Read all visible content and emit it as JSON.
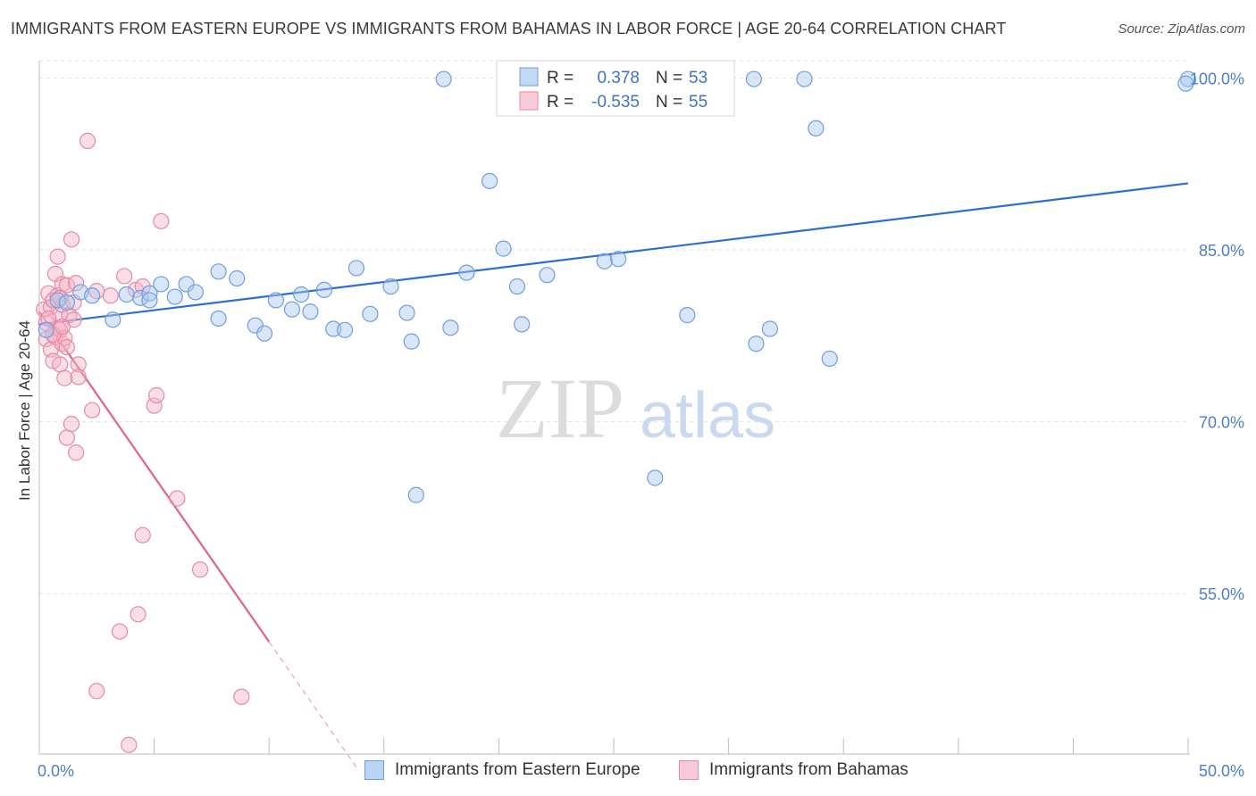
{
  "chart_data": {
    "type": "scatter",
    "title": "IMMIGRANTS FROM EASTERN EUROPE VS IMMIGRANTS FROM BAHAMAS IN LABOR FORCE | AGE 20-64 CORRELATION CHART",
    "source": "Source: ZipAtlas.com",
    "ylabel": "In Labor Force | Age 20-64",
    "xlabel": "",
    "xlim": [
      0,
      50
    ],
    "ylim": [
      41.0,
      101.5
    ],
    "x_tick_labels": [
      "0.0%",
      "50.0%"
    ],
    "y_ticks": [
      55.0,
      70.0,
      85.0,
      100.0
    ],
    "y_tick_labels": [
      "55.0%",
      "70.0%",
      "85.0%",
      "100.0%"
    ],
    "grid": true,
    "legend_position": "top-center",
    "watermark": "ZIPatlas",
    "legend": [
      {
        "r_label": "R =",
        "r_value": "0.378",
        "n_label": "N =",
        "n_value": "53"
      },
      {
        "r_label": "R =",
        "r_value": "-0.535",
        "n_label": "N =",
        "n_value": "55"
      }
    ],
    "series": [
      {
        "name": "Immigrants from Eastern Europe",
        "color": "#6f9ee0",
        "fill": "#aac8f0",
        "trend": {
          "x": [
            0,
            50
          ],
          "y": [
            78.5,
            90.8
          ],
          "dashed_x": null
        },
        "points": [
          [
            0.3,
            78.0
          ],
          [
            0.8,
            80.6
          ],
          [
            1.2,
            80.4
          ],
          [
            1.8,
            81.3
          ],
          [
            2.3,
            81.0
          ],
          [
            3.2,
            78.9
          ],
          [
            3.8,
            81.1
          ],
          [
            4.4,
            80.8
          ],
          [
            4.8,
            81.2
          ],
          [
            4.8,
            80.6
          ],
          [
            5.3,
            82.0
          ],
          [
            5.9,
            80.9
          ],
          [
            6.4,
            82.0
          ],
          [
            6.8,
            81.3
          ],
          [
            7.8,
            83.1
          ],
          [
            7.8,
            79.0
          ],
          [
            8.6,
            82.5
          ],
          [
            9.4,
            78.4
          ],
          [
            9.8,
            77.7
          ],
          [
            10.3,
            80.6
          ],
          [
            11.0,
            79.8
          ],
          [
            11.4,
            81.1
          ],
          [
            11.8,
            79.6
          ],
          [
            12.4,
            81.5
          ],
          [
            12.8,
            78.1
          ],
          [
            13.3,
            78.0
          ],
          [
            13.8,
            83.4
          ],
          [
            14.4,
            79.4
          ],
          [
            15.3,
            81.8
          ],
          [
            16.0,
            79.5
          ],
          [
            16.2,
            77.0
          ],
          [
            16.4,
            63.6
          ],
          [
            17.6,
            99.9
          ],
          [
            17.9,
            78.2
          ],
          [
            18.6,
            83.0
          ],
          [
            19.6,
            91.0
          ],
          [
            20.2,
            85.1
          ],
          [
            20.8,
            81.8
          ],
          [
            21.0,
            78.5
          ],
          [
            22.1,
            82.8
          ],
          [
            24.6,
            84.0
          ],
          [
            25.2,
            84.2
          ],
          [
            26.8,
            99.9
          ],
          [
            26.8,
            65.1
          ],
          [
            28.2,
            79.3
          ],
          [
            31.1,
            99.9
          ],
          [
            31.2,
            76.8
          ],
          [
            31.8,
            78.1
          ],
          [
            33.3,
            99.9
          ],
          [
            33.8,
            95.6
          ],
          [
            34.4,
            75.5
          ],
          [
            50.0,
            99.9
          ],
          [
            49.9,
            99.5
          ]
        ]
      },
      {
        "name": "Immigrants from Bahamas",
        "color": "#e889a6",
        "fill": "#f5b5c8",
        "trend": {
          "x": [
            0,
            10.0
          ],
          "y": [
            79.6,
            50.8
          ],
          "dashed_x": [
            10.0,
            13.8
          ]
        },
        "points": [
          [
            0.2,
            79.8
          ],
          [
            0.3,
            78.6
          ],
          [
            0.3,
            77.2
          ],
          [
            0.4,
            81.2
          ],
          [
            0.5,
            76.3
          ],
          [
            0.5,
            80.0
          ],
          [
            0.6,
            75.3
          ],
          [
            0.6,
            80.6
          ],
          [
            0.7,
            82.9
          ],
          [
            0.7,
            77.4
          ],
          [
            0.8,
            78.2
          ],
          [
            0.8,
            84.4
          ],
          [
            0.8,
            81.0
          ],
          [
            0.9,
            75.0
          ],
          [
            0.9,
            79.4
          ],
          [
            0.9,
            78.0
          ],
          [
            1.0,
            80.2
          ],
          [
            1.0,
            76.8
          ],
          [
            1.0,
            82.0
          ],
          [
            1.1,
            77.3
          ],
          [
            1.1,
            73.8
          ],
          [
            1.2,
            81.9
          ],
          [
            1.2,
            68.6
          ],
          [
            1.3,
            79.3
          ],
          [
            1.4,
            85.9
          ],
          [
            1.4,
            69.8
          ],
          [
            1.5,
            80.4
          ],
          [
            1.5,
            78.9
          ],
          [
            1.6,
            67.3
          ],
          [
            1.6,
            82.1
          ],
          [
            1.7,
            75.0
          ],
          [
            1.7,
            73.9
          ],
          [
            2.1,
            94.5
          ],
          [
            2.3,
            71.0
          ],
          [
            2.5,
            81.4
          ],
          [
            2.5,
            46.5
          ],
          [
            3.1,
            81.0
          ],
          [
            3.5,
            51.7
          ],
          [
            3.7,
            82.7
          ],
          [
            3.9,
            41.8
          ],
          [
            4.2,
            81.5
          ],
          [
            4.3,
            53.2
          ],
          [
            4.5,
            81.8
          ],
          [
            4.5,
            60.1
          ],
          [
            5.0,
            71.4
          ],
          [
            5.1,
            72.3
          ],
          [
            5.3,
            87.5
          ],
          [
            6.0,
            63.3
          ],
          [
            7.0,
            57.1
          ],
          [
            8.8,
            46.0
          ],
          [
            0.4,
            79.0
          ],
          [
            0.6,
            77.6
          ],
          [
            0.9,
            80.8
          ],
          [
            1.0,
            78.3
          ],
          [
            1.2,
            76.5
          ]
        ]
      }
    ]
  },
  "bottom_legend": {
    "series1": "Immigrants from Eastern Europe",
    "series2": "Immigrants from Bahamas"
  }
}
